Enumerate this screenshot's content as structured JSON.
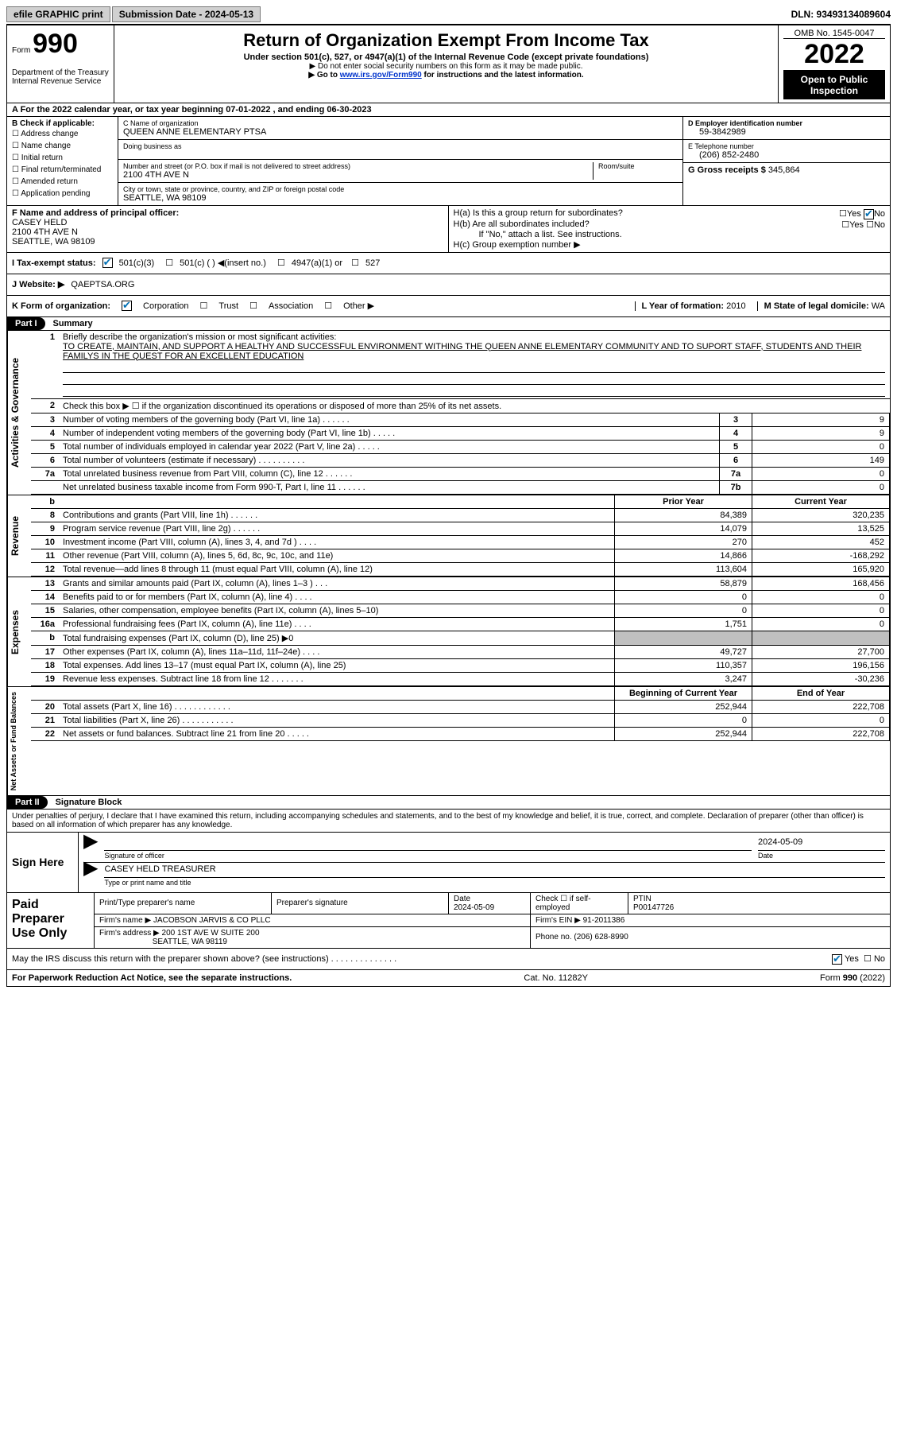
{
  "topbar": {
    "efile": "efile GRAPHIC print",
    "sub_label": "Submission Date - 2024-05-13",
    "dln": "DLN: 93493134089604"
  },
  "header": {
    "form_prefix": "Form",
    "form_num": "990",
    "dept": "Department of the Treasury",
    "irs": "Internal Revenue Service",
    "title": "Return of Organization Exempt From Income Tax",
    "sub": "Under section 501(c), 527, or 4947(a)(1) of the Internal Revenue Code (except private foundations)",
    "note1": "▶ Do not enter social security numbers on this form as it may be made public.",
    "note2_pre": "▶ Go to ",
    "note2_link": "www.irs.gov/Form990",
    "note2_post": " for instructions and the latest information.",
    "omb": "OMB No. 1545-0047",
    "year": "2022",
    "public": "Open to Public Inspection"
  },
  "section_a": "A   For the 2022 calendar year, or tax year beginning 07-01-2022    , and ending 06-30-2023",
  "entity": {
    "b_label": "B Check if applicable:",
    "checks": [
      "Address change",
      "Name change",
      "Initial return",
      "Final return/terminated",
      "Amended return",
      "Application pending"
    ],
    "c_label": "C Name of organization",
    "c_name": "QUEEN ANNE ELEMENTARY PTSA",
    "dba_label": "Doing business as",
    "addr_label": "Number and street (or P.O. box if mail is not delivered to street address)",
    "room_label": "Room/suite",
    "addr": "2100 4TH AVE N",
    "city_label": "City or town, state or province, country, and ZIP or foreign postal code",
    "city": "SEATTLE, WA  98109",
    "d_label": "D Employer identification number",
    "d_val": "59-3842989",
    "e_label": "E Telephone number",
    "e_val": "(206) 852-2480",
    "g_label": "G Gross receipts $",
    "g_val": "345,864"
  },
  "fg": {
    "f_label": "F  Name and address of principal officer:",
    "f_name": "CASEY HELD",
    "f_addr1": "2100 4TH AVE N",
    "f_addr2": "SEATTLE, WA  98109",
    "ha_label": "H(a)  Is this a group return for subordinates?",
    "hb_label": "H(b)  Are all subordinates included?",
    "hb_note": "If \"No,\" attach a list. See instructions.",
    "hc_label": "H(c)  Group exemption number ▶",
    "yes": "Yes",
    "no": "No"
  },
  "status": {
    "i_label": "I  Tax-exempt status:",
    "c3": "501(c)(3)",
    "cn": "501(c) (   ) ◀(insert no.)",
    "a1": "4947(a)(1) or",
    "s527": "527",
    "j_label": "J  Website: ▶",
    "j_val": "QAEPTSA.ORG"
  },
  "kline": {
    "k_label": "K Form of organization:",
    "corp": "Corporation",
    "trust": "Trust",
    "assoc": "Association",
    "other": "Other ▶",
    "l_label": "L Year of formation:",
    "l_val": "2010",
    "m_label": "M State of legal domicile:",
    "m_val": "WA"
  },
  "part1": {
    "title": "Part I",
    "name": "Summary",
    "q1_label": "Briefly describe the organization's mission or most significant activities:",
    "q1_val": "TO CREATE, MAINTAIN, AND SUPPORT A HEALTHY AND SUCCESSFUL ENVIRONMENT WITHING THE QUEEN ANNE ELEMENTARY COMMUNITY AND TO SUPORT STAFF, STUDENTS AND THEIR FAMILYS IN THE QUEST FOR AN EXCELLENT EDUCATION",
    "q2": "Check this box ▶ ☐  if the organization discontinued its operations or disposed of more than 25% of its net assets.",
    "prior": "Prior Year",
    "current": "Current Year",
    "boy": "Beginning of Current Year",
    "eoy": "End of Year",
    "rows_gov": [
      {
        "n": "3",
        "t": "Number of voting members of the governing body (Part VI, line 1a)   .    .    .    .    .    .",
        "b": "3",
        "v": "9"
      },
      {
        "n": "4",
        "t": "Number of independent voting members of the governing body (Part VI, line 1b)   .    .    .    .    .",
        "b": "4",
        "v": "9"
      },
      {
        "n": "5",
        "t": "Total number of individuals employed in calendar year 2022 (Part V, line 2a)   .    .    .    .    .",
        "b": "5",
        "v": "0"
      },
      {
        "n": "6",
        "t": "Total number of volunteers (estimate if necessary)    .    .    .    .    .    .    .    .    .    .",
        "b": "6",
        "v": "149"
      },
      {
        "n": "7a",
        "t": "Total unrelated business revenue from Part VIII, column (C), line 12   .    .    .    .    .    .",
        "b": "7a",
        "v": "0"
      },
      {
        "n": "",
        "t": "Net unrelated business taxable income from Form 990-T, Part I, line 11   .    .    .    .    .    .",
        "b": "7b",
        "v": "0"
      }
    ],
    "rows_rev": [
      {
        "n": "8",
        "t": "Contributions and grants (Part VIII, line 1h)   .    .    .    .    .    .",
        "p": "84,389",
        "c": "320,235"
      },
      {
        "n": "9",
        "t": "Program service revenue (Part VIII, line 2g)   .    .    .    .    .    .",
        "p": "14,079",
        "c": "13,525"
      },
      {
        "n": "10",
        "t": "Investment income (Part VIII, column (A), lines 3, 4, and 7d )   .    .    .    .",
        "p": "270",
        "c": "452"
      },
      {
        "n": "11",
        "t": "Other revenue (Part VIII, column (A), lines 5, 6d, 8c, 9c, 10c, and 11e)",
        "p": "14,866",
        "c": "-168,292"
      },
      {
        "n": "12",
        "t": "Total revenue—add lines 8 through 11 (must equal Part VIII, column (A), line 12)",
        "p": "113,604",
        "c": "165,920"
      }
    ],
    "rows_exp": [
      {
        "n": "13",
        "t": "Grants and similar amounts paid (Part IX, column (A), lines 1–3 )   .    .    .",
        "p": "58,879",
        "c": "168,456"
      },
      {
        "n": "14",
        "t": "Benefits paid to or for members (Part IX, column (A), line 4)   .    .    .    .",
        "p": "0",
        "c": "0"
      },
      {
        "n": "15",
        "t": "Salaries, other compensation, employee benefits (Part IX, column (A), lines 5–10)",
        "p": "0",
        "c": "0"
      },
      {
        "n": "16a",
        "t": "Professional fundraising fees (Part IX, column (A), line 11e)   .    .    .    .",
        "p": "1,751",
        "c": "0"
      },
      {
        "n": "b",
        "t": "Total fundraising expenses (Part IX, column (D), line 25) ▶0",
        "p": "",
        "c": "",
        "shade": true
      },
      {
        "n": "17",
        "t": "Other expenses (Part IX, column (A), lines 11a–11d, 11f–24e)   .    .    .    .",
        "p": "49,727",
        "c": "27,700"
      },
      {
        "n": "18",
        "t": "Total expenses. Add lines 13–17 (must equal Part IX, column (A), line 25)",
        "p": "110,357",
        "c": "196,156"
      },
      {
        "n": "19",
        "t": "Revenue less expenses. Subtract line 18 from line 12   .    .    .    .    .    .    .",
        "p": "3,247",
        "c": "-30,236"
      }
    ],
    "rows_net": [
      {
        "n": "20",
        "t": "Total assets (Part X, line 16)  .    .    .    .    .    .    .    .    .    .    .    .",
        "p": "252,944",
        "c": "222,708"
      },
      {
        "n": "21",
        "t": "Total liabilities (Part X, line 26)  .    .    .    .    .    .    .    .    .    .    .",
        "p": "0",
        "c": "0"
      },
      {
        "n": "22",
        "t": "Net assets or fund balances. Subtract line 21 from line 20   .    .    .    .    .",
        "p": "252,944",
        "c": "222,708"
      }
    ],
    "tabs": {
      "gov": "Activities & Governance",
      "rev": "Revenue",
      "exp": "Expenses",
      "net": "Net Assets or Fund Balances"
    }
  },
  "part2": {
    "title": "Part II",
    "name": "Signature Block",
    "decl": "Under penalties of perjury, I declare that I have examined this return, including accompanying schedules and statements, and to the best of my knowledge and belief, it is true, correct, and complete. Declaration of preparer (other than officer) is based on all information of which preparer has any knowledge.",
    "sign_here": "Sign Here",
    "sig_officer": "Signature of officer",
    "sig_date": "2024-05-09",
    "name_title": "CASEY HELD  TREASURER",
    "name_title_label": "Type or print name and title"
  },
  "prep": {
    "left": "Paid Preparer Use Only",
    "name_label": "Print/Type preparer's name",
    "sig_label": "Preparer's signature",
    "date_label": "Date",
    "date": "2024-05-09",
    "self_label": "Check ☐ if self-employed",
    "ptin_label": "PTIN",
    "ptin": "P00147726",
    "firm_label": "Firm's name    ▶",
    "firm": "JACOBSON JARVIS & CO PLLC",
    "ein_label": "Firm's EIN ▶",
    "ein": "91-2011386",
    "addr_label": "Firm's address ▶",
    "addr1": "200 1ST AVE W SUITE 200",
    "addr2": "SEATTLE, WA  98119",
    "phone_label": "Phone no.",
    "phone": "(206) 628-8990"
  },
  "footer": {
    "discuss": "May the IRS discuss this return with the preparer shown above? (see instructions)   .    .    .    .    .    .    .    .    .    .    .    .    .    .",
    "yes": "Yes",
    "no": "No",
    "pra": "For Paperwork Reduction Act Notice, see the separate instructions.",
    "cat": "Cat. No. 11282Y",
    "form": "Form 990 (2022)"
  }
}
